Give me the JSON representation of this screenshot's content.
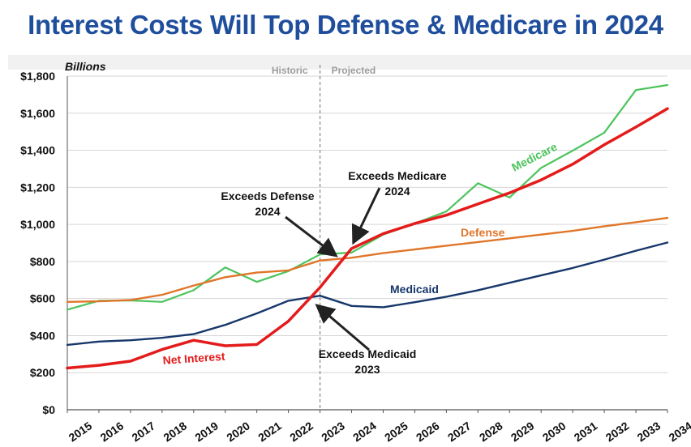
{
  "title": "Interest Costs Will Top Defense & Medicare in 2024",
  "chart_data": {
    "type": "line",
    "title": "Interest Costs Will Top Defense & Medicare in 2024",
    "unit_label": "Billions",
    "x": [
      "2015",
      "2016",
      "2017",
      "2018",
      "2019",
      "2020",
      "2021",
      "2022",
      "2023",
      "2024",
      "2025",
      "2026",
      "2027",
      "2028",
      "2029",
      "2030",
      "2031",
      "2032",
      "2033",
      "2034"
    ],
    "ylim": [
      0,
      1800
    ],
    "yticks": [
      0,
      200,
      400,
      600,
      800,
      1000,
      1200,
      1400,
      1600,
      1800
    ],
    "ytick_labels": [
      "$0",
      "$200",
      "$400",
      "$600",
      "$800",
      "$1,000",
      "$1,200",
      "$1,400",
      "$1,600",
      "$1,800"
    ],
    "grid": true,
    "divider": {
      "at": "2023",
      "left_label": "Historic",
      "right_label": "Projected"
    },
    "series": [
      {
        "name": "Medicare",
        "color": "#4cc45c",
        "values": [
          540,
          588,
          590,
          582,
          645,
          768,
          690,
          748,
          838,
          848,
          945,
          1005,
          1070,
          1222,
          1145,
          1305,
          1398,
          1495,
          1725,
          1752
        ]
      },
      {
        "name": "Defense",
        "color": "#e0762a",
        "values": [
          582,
          585,
          592,
          620,
          670,
          715,
          740,
          752,
          805,
          820,
          845,
          865,
          885,
          905,
          925,
          945,
          965,
          990,
          1012,
          1035
        ]
      },
      {
        "name": "Medicaid",
        "color": "#17376b",
        "values": [
          350,
          368,
          375,
          388,
          408,
          458,
          520,
          588,
          615,
          560,
          553,
          580,
          610,
          645,
          685,
          725,
          765,
          810,
          858,
          902
        ]
      },
      {
        "name": "Net Interest",
        "color": "#e41b1b",
        "values": [
          225,
          240,
          262,
          325,
          375,
          345,
          352,
          478,
          660,
          870,
          950,
          1005,
          1050,
          1110,
          1170,
          1240,
          1325,
          1430,
          1525,
          1625
        ]
      }
    ],
    "annotations": [
      {
        "lines": [
          "Exceeds Defense",
          "2024"
        ]
      },
      {
        "lines": [
          "Exceeds Medicare",
          "2024"
        ]
      },
      {
        "lines": [
          "Exceeds Medicaid",
          "2023"
        ]
      }
    ]
  }
}
